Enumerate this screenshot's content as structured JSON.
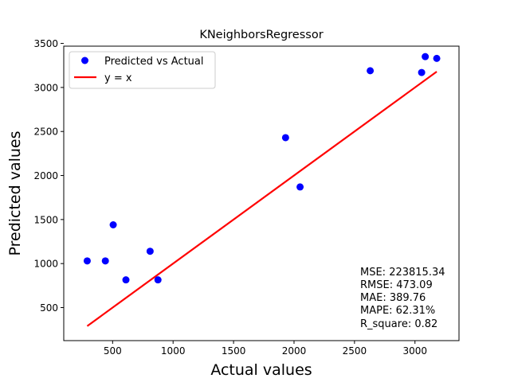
{
  "chart_data": {
    "type": "scatter",
    "title": "KNeighborsRegressor",
    "xlabel": "Actual values",
    "ylabel": "Predicted values",
    "xlim": [
      96,
      3364
    ],
    "ylim": [
      125,
      3469
    ],
    "xticks": [
      500,
      1000,
      1500,
      2000,
      2500,
      3000
    ],
    "yticks": [
      500,
      1000,
      1500,
      2000,
      2500,
      3000,
      3500
    ],
    "grid": false,
    "legend_position": "top-left",
    "series": [
      {
        "name": "Predicted vs Actual",
        "kind": "scatter",
        "color": "#0000ff",
        "points": [
          {
            "x": 290,
            "y": 1030
          },
          {
            "x": 440,
            "y": 1030
          },
          {
            "x": 505,
            "y": 1440
          },
          {
            "x": 610,
            "y": 815
          },
          {
            "x": 810,
            "y": 1140
          },
          {
            "x": 875,
            "y": 815
          },
          {
            "x": 1930,
            "y": 2430
          },
          {
            "x": 2050,
            "y": 1870
          },
          {
            "x": 2630,
            "y": 3190
          },
          {
            "x": 3055,
            "y": 3170
          },
          {
            "x": 3085,
            "y": 3350
          },
          {
            "x": 3180,
            "y": 3330
          }
        ]
      },
      {
        "name": "y = x",
        "kind": "line",
        "color": "#ff0000",
        "points": [
          {
            "x": 290,
            "y": 290
          },
          {
            "x": 3180,
            "y": 3180
          }
        ]
      }
    ],
    "annotations": [
      "MSE: 223815.34",
      "RMSE: 473.09",
      "MAE: 389.76",
      "MAPE: 62.31%",
      "R_square: 0.82"
    ]
  }
}
